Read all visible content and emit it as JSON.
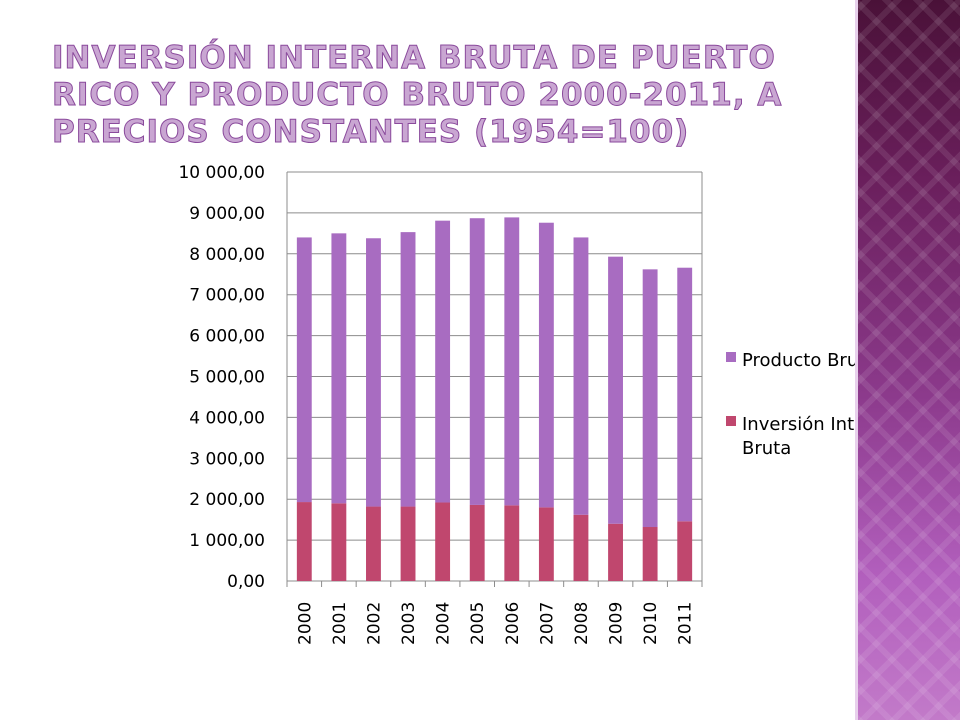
{
  "slide": {
    "title": "Inversión Interna Bruta de Puerto Rico y Producto Bruto 2000-2011, a precios constantes (1954=100)"
  },
  "colors": {
    "producto_bruto": "#a86cc1",
    "inversion": "#c0476e",
    "band": "#8c3a8c"
  },
  "chart_data": {
    "type": "bar",
    "stacked": true,
    "categories": [
      "2000",
      "2001",
      "2002",
      "2003",
      "2004",
      "2005",
      "2006",
      "2007",
      "2008",
      "2009",
      "2010",
      "2011"
    ],
    "series": [
      {
        "name": "Inversión Interna Bruta",
        "values": [
          1930,
          1900,
          1820,
          1820,
          1920,
          1860,
          1850,
          1800,
          1620,
          1400,
          1320,
          1460
        ]
      },
      {
        "name": "Producto Bruto",
        "values": [
          6470,
          6600,
          6560,
          6710,
          6890,
          7010,
          7040,
          6960,
          6780,
          6530,
          6300,
          6200
        ]
      }
    ],
    "ylim": [
      0,
      10000
    ],
    "yticks": [
      "0,00",
      "1 000,00",
      "2 000,00",
      "3 000,00",
      "4 000,00",
      "5 000,00",
      "6 000,00",
      "7 000,00",
      "8 000,00",
      "9 000,00",
      "10 000,00"
    ],
    "grid": true,
    "legend_position": "right",
    "legend_order": [
      "Producto Bruto",
      "Inversión Interna Bruta"
    ],
    "xlabel": "",
    "ylabel": ""
  }
}
